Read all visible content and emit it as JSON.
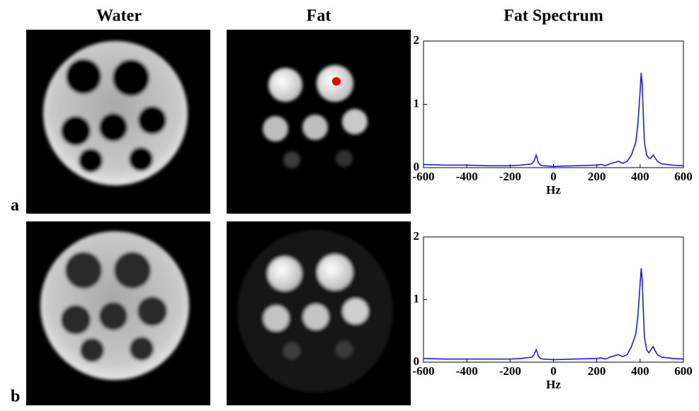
{
  "panels": {
    "columns": [
      "Water",
      "Fat"
    ],
    "labels": [
      "a",
      "b"
    ]
  },
  "chart_data": [
    {
      "type": "line",
      "title": "Fat Spectrum",
      "xlabel": "Hz",
      "x": [
        -600,
        -500,
        -400,
        -300,
        -200,
        -150,
        -100,
        -90,
        -80,
        -75,
        -70,
        -60,
        -50,
        0,
        100,
        200,
        220,
        240,
        260,
        280,
        300,
        320,
        340,
        360,
        380,
        390,
        400,
        405,
        410,
        415,
        420,
        430,
        440,
        450,
        460,
        470,
        480,
        500,
        550,
        600
      ],
      "series": [
        {
          "name": "Fat Spectrum",
          "color": "#1a1aff",
          "values": [
            0.05,
            0.04,
            0.04,
            0.03,
            0.03,
            0.04,
            0.06,
            0.1,
            0.2,
            0.15,
            0.08,
            0.04,
            0.03,
            0.02,
            0.03,
            0.04,
            0.05,
            0.03,
            0.06,
            0.08,
            0.1,
            0.07,
            0.1,
            0.2,
            0.4,
            0.7,
            1.2,
            1.5,
            1.3,
            0.8,
            0.4,
            0.2,
            0.15,
            0.15,
            0.2,
            0.15,
            0.1,
            0.06,
            0.04,
            0.03
          ]
        }
      ],
      "xlim": [
        -600,
        600
      ],
      "ylim": [
        0,
        2
      ],
      "xticks": [
        -600,
        -400,
        -200,
        0,
        200,
        400,
        600
      ],
      "yticks": [
        0,
        1,
        2
      ]
    },
    {
      "type": "line",
      "xlabel": "Hz",
      "x": [
        -600,
        -500,
        -400,
        -300,
        -200,
        -150,
        -100,
        -90,
        -80,
        -75,
        -70,
        -60,
        -50,
        0,
        100,
        200,
        220,
        240,
        260,
        280,
        300,
        320,
        340,
        360,
        380,
        390,
        400,
        405,
        410,
        415,
        420,
        430,
        440,
        450,
        460,
        470,
        480,
        500,
        550,
        600
      ],
      "series": [
        {
          "name": "Fat Spectrum",
          "color": "#1a1aff",
          "values": [
            0.06,
            0.05,
            0.05,
            0.05,
            0.05,
            0.06,
            0.08,
            0.12,
            0.2,
            0.16,
            0.1,
            0.06,
            0.05,
            0.04,
            0.05,
            0.06,
            0.07,
            0.05,
            0.08,
            0.1,
            0.12,
            0.09,
            0.12,
            0.25,
            0.45,
            0.75,
            1.25,
            1.5,
            1.3,
            0.8,
            0.4,
            0.2,
            0.15,
            0.2,
            0.25,
            0.18,
            0.12,
            0.08,
            0.06,
            0.05
          ]
        }
      ],
      "xlim": [
        -600,
        600
      ],
      "ylim": [
        0,
        2
      ],
      "xticks": [
        -600,
        -400,
        -200,
        0,
        200,
        400,
        600
      ],
      "yticks": [
        0,
        1,
        2
      ]
    }
  ]
}
